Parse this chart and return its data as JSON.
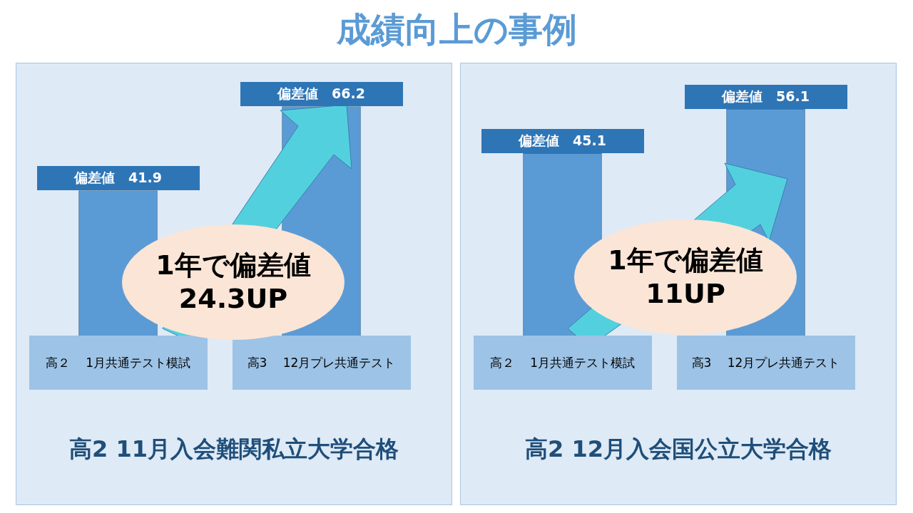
{
  "chart_data": [
    {
      "type": "bar",
      "title": "成績向上の事例",
      "categories": [
        "高２　 1月共通テスト模試",
        "高3　 12月プレ共通テスト"
      ],
      "values": [
        41.9,
        66.2
      ],
      "value_labels": [
        "偏差値　41.9",
        "偏差値　66.2"
      ],
      "color": "#5b9bd5",
      "tick_labels": "x",
      "legend": false,
      "annotations": [
        "1年で偏差値\n24.3UP",
        "高2  11月入会難関私立大学合格"
      ]
    },
    {
      "type": "bar",
      "categories": [
        "高２　 1月共通テスト模試",
        "高3　 12月プレ共通テスト"
      ],
      "values": [
        45.1,
        56.1
      ],
      "value_labels": [
        "偏差値　45.1",
        "偏差値　56.1"
      ],
      "color": "#5b9bd5",
      "tick_labels": "x",
      "legend": false,
      "annotations": [
        "1年で偏差値\n11UP",
        "高2  12月入会国公立大学合格"
      ]
    }
  ]
}
